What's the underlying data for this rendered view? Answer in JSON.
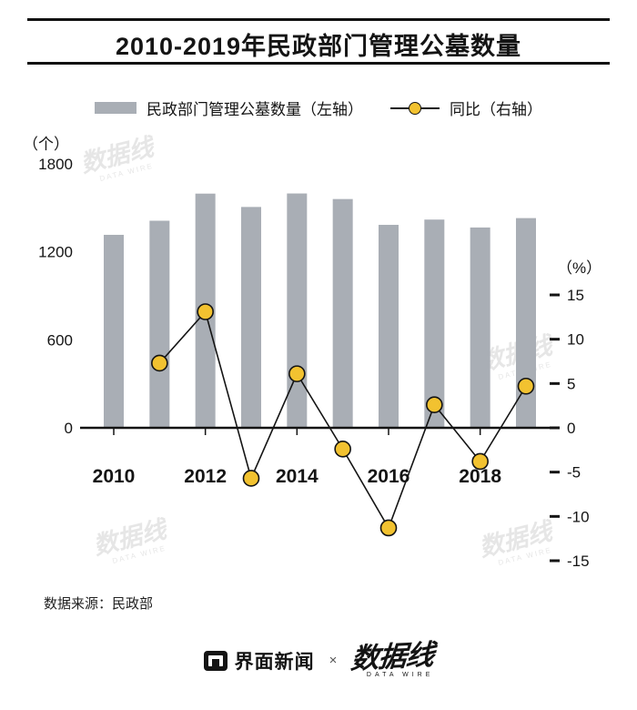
{
  "header": {
    "title": "2010-2019年民政部门管理公墓数量"
  },
  "legend": {
    "bars_label": "民政部门管理公墓数量（左轴）",
    "line_label": "同比（右轴）"
  },
  "chart_data": {
    "type": "bar",
    "subtype": "bar-line-combo",
    "title": "2010-2019年民政部门管理公墓数量",
    "categories": [
      2010,
      2011,
      2012,
      2013,
      2014,
      2015,
      2016,
      2017,
      2018,
      2019
    ],
    "series": [
      {
        "name": "民政部门管理公墓数量（左轴）",
        "type": "bar",
        "axis": "left",
        "values": [
          1316,
          1412,
          1597,
          1506,
          1598,
          1560,
          1384,
          1420,
          1366,
          1430
        ]
      },
      {
        "name": "同比（右轴）",
        "type": "line",
        "axis": "right",
        "unit": "%",
        "values": [
          null,
          7.3,
          13.1,
          -5.7,
          6.1,
          -2.4,
          -11.3,
          2.6,
          -3.8,
          4.7
        ]
      }
    ],
    "left_axis": {
      "unit_label": "（个）",
      "ticks": [
        1800,
        1200,
        600,
        0
      ],
      "range": [
        0,
        1800
      ]
    },
    "right_axis": {
      "unit_label": "（%）",
      "ticks": [
        15,
        10,
        5,
        0,
        -5,
        -10,
        -15
      ],
      "range": [
        -15,
        15
      ]
    },
    "x_tick_labels": [
      2010,
      2012,
      2014,
      2016,
      2018
    ],
    "grid": false,
    "legend_position": "top",
    "bar_color": "#a9aeb5",
    "marker_fill": "#f2c230",
    "line_color": "#141414"
  },
  "watermark": {
    "text": "数据线",
    "subtext": "DATA WIRE"
  },
  "source": {
    "text": "数据来源：民政部"
  },
  "footer": {
    "jiemian_label": "界面新闻",
    "separator": "×",
    "datawire_label": "数据线",
    "datawire_sub": "DATA WIRE"
  }
}
